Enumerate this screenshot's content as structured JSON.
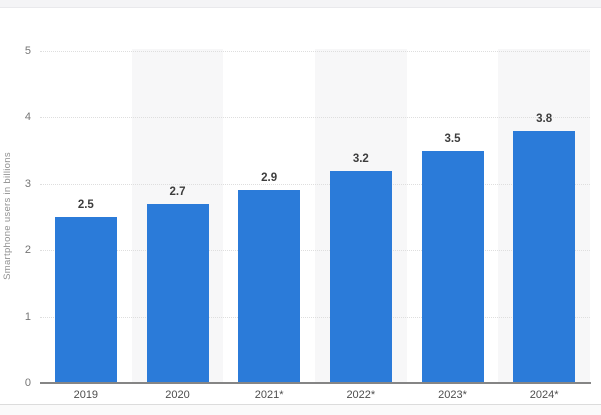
{
  "chart_data": {
    "type": "bar",
    "categories": [
      "2019",
      "2020",
      "2021*",
      "2022*",
      "2023*",
      "2024*"
    ],
    "values": [
      2.5,
      2.7,
      2.9,
      3.2,
      3.5,
      3.8
    ],
    "title": "",
    "xlabel": "",
    "ylabel": "Smartphone users in billions",
    "ylim": [
      0,
      5
    ],
    "yticks": [
      0,
      1,
      2,
      3,
      4,
      5
    ],
    "grid": true,
    "gridline_style": "dotted",
    "legend": "none",
    "bar_color": "#2b7bd9",
    "band_color": "#f7f7f8",
    "banded_columns": [
      1,
      3,
      5
    ],
    "value_label_color": "#3d3d3d",
    "axis_line_color": "#858585"
  }
}
